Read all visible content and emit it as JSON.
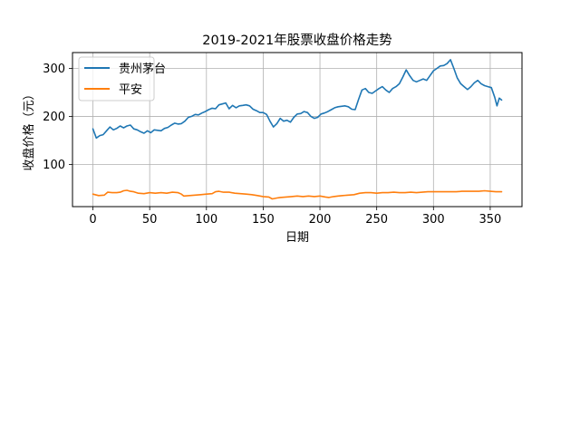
{
  "chart_data": {
    "type": "line",
    "title": "2019-2021年股票收盘价格走势",
    "xlabel": "日期",
    "ylabel": "收盘价格（元）",
    "xlim": [
      -18,
      378
    ],
    "ylim": [
      12,
      333
    ],
    "xticks": [
      0,
      50,
      100,
      150,
      200,
      250,
      300,
      350
    ],
    "yticks": [
      100,
      200,
      300
    ],
    "grid": true,
    "legend_position": "top-left",
    "series": [
      {
        "name": "贵州茅台",
        "color": "#1f77b4",
        "points": [
          [
            0,
            174
          ],
          [
            3,
            155
          ],
          [
            6,
            160
          ],
          [
            9,
            162
          ],
          [
            12,
            170
          ],
          [
            15,
            178
          ],
          [
            18,
            172
          ],
          [
            21,
            175
          ],
          [
            24,
            180
          ],
          [
            27,
            176
          ],
          [
            30,
            180
          ],
          [
            33,
            182
          ],
          [
            36,
            174
          ],
          [
            39,
            172
          ],
          [
            42,
            168
          ],
          [
            45,
            165
          ],
          [
            48,
            170
          ],
          [
            51,
            166
          ],
          [
            54,
            172
          ],
          [
            57,
            171
          ],
          [
            60,
            170
          ],
          [
            63,
            175
          ],
          [
            66,
            177
          ],
          [
            69,
            182
          ],
          [
            72,
            186
          ],
          [
            75,
            184
          ],
          [
            78,
            185
          ],
          [
            81,
            190
          ],
          [
            84,
            198
          ],
          [
            87,
            200
          ],
          [
            90,
            204
          ],
          [
            93,
            203
          ],
          [
            96,
            207
          ],
          [
            99,
            210
          ],
          [
            102,
            214
          ],
          [
            105,
            217
          ],
          [
            108,
            216
          ],
          [
            111,
            224
          ],
          [
            114,
            226
          ],
          [
            117,
            228
          ],
          [
            120,
            216
          ],
          [
            123,
            223
          ],
          [
            126,
            218
          ],
          [
            129,
            222
          ],
          [
            132,
            223
          ],
          [
            135,
            224
          ],
          [
            138,
            222
          ],
          [
            141,
            215
          ],
          [
            144,
            212
          ],
          [
            147,
            208
          ],
          [
            150,
            208
          ],
          [
            153,
            204
          ],
          [
            156,
            190
          ],
          [
            159,
            178
          ],
          [
            162,
            185
          ],
          [
            165,
            196
          ],
          [
            168,
            190
          ],
          [
            171,
            192
          ],
          [
            174,
            188
          ],
          [
            177,
            198
          ],
          [
            180,
            205
          ],
          [
            183,
            206
          ],
          [
            186,
            210
          ],
          [
            189,
            208
          ],
          [
            192,
            200
          ],
          [
            195,
            196
          ],
          [
            198,
            198
          ],
          [
            201,
            205
          ],
          [
            204,
            207
          ],
          [
            207,
            210
          ],
          [
            210,
            214
          ],
          [
            213,
            218
          ],
          [
            216,
            220
          ],
          [
            219,
            221
          ],
          [
            222,
            222
          ],
          [
            225,
            220
          ],
          [
            228,
            215
          ],
          [
            231,
            214
          ],
          [
            234,
            235
          ],
          [
            237,
            255
          ],
          [
            240,
            258
          ],
          [
            243,
            250
          ],
          [
            246,
            248
          ],
          [
            249,
            253
          ],
          [
            252,
            258
          ],
          [
            255,
            262
          ],
          [
            258,
            255
          ],
          [
            261,
            250
          ],
          [
            264,
            258
          ],
          [
            267,
            262
          ],
          [
            270,
            268
          ],
          [
            273,
            282
          ],
          [
            276,
            297
          ],
          [
            279,
            285
          ],
          [
            282,
            275
          ],
          [
            285,
            272
          ],
          [
            288,
            275
          ],
          [
            291,
            278
          ],
          [
            294,
            275
          ],
          [
            297,
            285
          ],
          [
            300,
            295
          ],
          [
            303,
            300
          ],
          [
            306,
            305
          ],
          [
            309,
            306
          ],
          [
            312,
            310
          ],
          [
            315,
            318
          ],
          [
            318,
            300
          ],
          [
            321,
            280
          ],
          [
            324,
            268
          ],
          [
            327,
            262
          ],
          [
            330,
            256
          ],
          [
            333,
            262
          ],
          [
            336,
            270
          ],
          [
            339,
            275
          ],
          [
            342,
            268
          ],
          [
            345,
            264
          ],
          [
            348,
            262
          ],
          [
            351,
            260
          ],
          [
            354,
            240
          ],
          [
            356,
            222
          ],
          [
            358,
            238
          ],
          [
            360,
            234
          ]
        ]
      },
      {
        "name": "平安",
        "color": "#ff7f0e",
        "points": [
          [
            0,
            38
          ],
          [
            5,
            35
          ],
          [
            10,
            36
          ],
          [
            13,
            42
          ],
          [
            17,
            41
          ],
          [
            21,
            41
          ],
          [
            24,
            42
          ],
          [
            27,
            45
          ],
          [
            30,
            46
          ],
          [
            33,
            44
          ],
          [
            36,
            43
          ],
          [
            40,
            40
          ],
          [
            45,
            39
          ],
          [
            50,
            41
          ],
          [
            55,
            40
          ],
          [
            60,
            41
          ],
          [
            65,
            40
          ],
          [
            70,
            42
          ],
          [
            75,
            41
          ],
          [
            78,
            38
          ],
          [
            80,
            34
          ],
          [
            85,
            35
          ],
          [
            90,
            36
          ],
          [
            95,
            37
          ],
          [
            100,
            38
          ],
          [
            105,
            39
          ],
          [
            108,
            43
          ],
          [
            111,
            44
          ],
          [
            115,
            42
          ],
          [
            120,
            42
          ],
          [
            125,
            40
          ],
          [
            130,
            39
          ],
          [
            135,
            38
          ],
          [
            140,
            37
          ],
          [
            145,
            35
          ],
          [
            150,
            33
          ],
          [
            155,
            32
          ],
          [
            158,
            28
          ],
          [
            162,
            30
          ],
          [
            165,
            31
          ],
          [
            170,
            32
          ],
          [
            175,
            33
          ],
          [
            180,
            34
          ],
          [
            185,
            33
          ],
          [
            190,
            34
          ],
          [
            195,
            33
          ],
          [
            200,
            34
          ],
          [
            205,
            32
          ],
          [
            208,
            31
          ],
          [
            212,
            33
          ],
          [
            216,
            34
          ],
          [
            220,
            35
          ],
          [
            225,
            36
          ],
          [
            230,
            37
          ],
          [
            235,
            40
          ],
          [
            240,
            41
          ],
          [
            245,
            41
          ],
          [
            250,
            40
          ],
          [
            255,
            41
          ],
          [
            260,
            41
          ],
          [
            265,
            42
          ],
          [
            270,
            41
          ],
          [
            275,
            41
          ],
          [
            280,
            42
          ],
          [
            285,
            41
          ],
          [
            290,
            42
          ],
          [
            295,
            43
          ],
          [
            300,
            43
          ],
          [
            305,
            43
          ],
          [
            310,
            43
          ],
          [
            315,
            43
          ],
          [
            320,
            43
          ],
          [
            325,
            44
          ],
          [
            330,
            44
          ],
          [
            335,
            44
          ],
          [
            340,
            44
          ],
          [
            345,
            45
          ],
          [
            350,
            44
          ],
          [
            355,
            43
          ],
          [
            360,
            43
          ]
        ]
      }
    ]
  }
}
